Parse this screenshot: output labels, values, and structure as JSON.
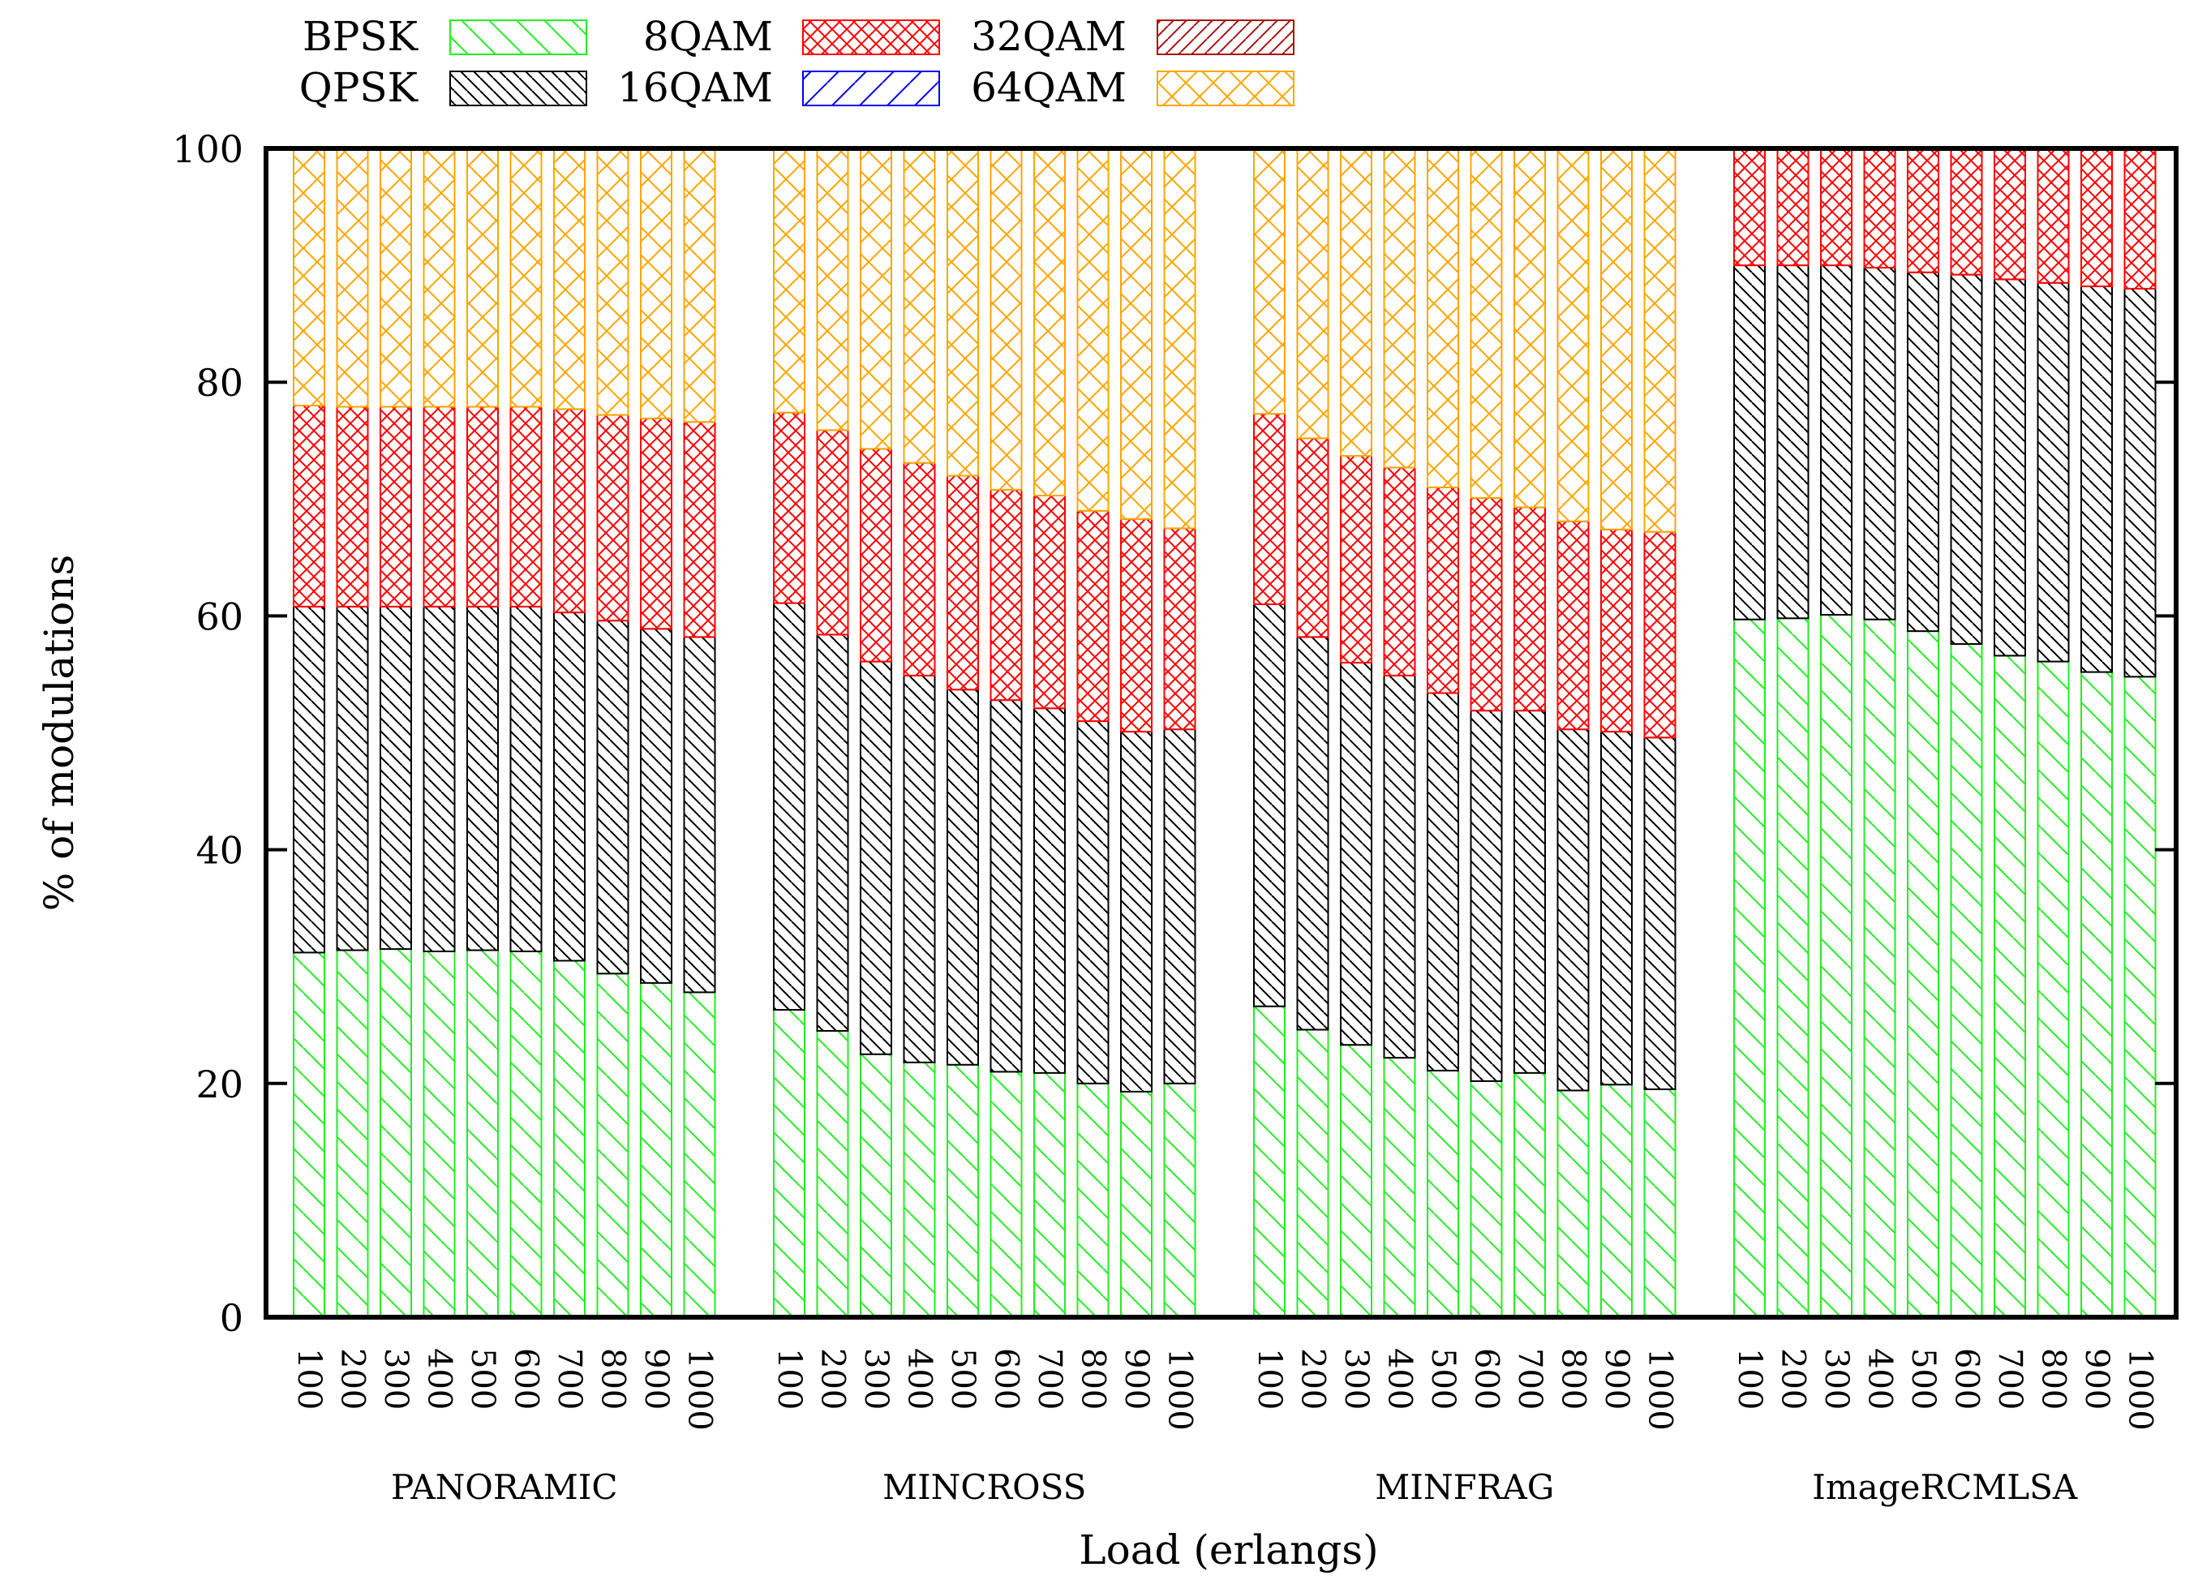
{
  "chart_data": {
    "type": "bar",
    "stacked": true,
    "ylabel": "% of modulations",
    "xlabel": "Load (erlangs)",
    "ylim": [
      0,
      100
    ],
    "yticks": [
      "0",
      "20",
      "40",
      "60",
      "80",
      "100"
    ],
    "loads": [
      "100",
      "200",
      "300",
      "400",
      "500",
      "600",
      "700",
      "800",
      "900",
      "1000"
    ],
    "legend_position": "top-left, outside plot",
    "series": [
      {
        "name": "BPSK",
        "color": "#22ee22",
        "pattern": "diag-back"
      },
      {
        "name": "QPSK",
        "color": "#000000",
        "pattern": "diag-back-dense"
      },
      {
        "name": "8QAM",
        "color": "#ff0000",
        "pattern": "crosshatch-dense"
      },
      {
        "name": "16QAM",
        "color": "#0000ff",
        "pattern": "diag-fwd"
      },
      {
        "name": "32QAM",
        "color": "#aa1111",
        "pattern": "diag-fwd-dense"
      },
      {
        "name": "64QAM",
        "color": "#ffa500",
        "pattern": "crosshatch"
      }
    ],
    "groups": [
      {
        "name": "PANORAMIC",
        "values": {
          "BPSK": [
            31.2,
            31.4,
            31.5,
            31.3,
            31.4,
            31.3,
            30.5,
            29.4,
            28.6,
            27.8
          ],
          "QPSK": [
            29.6,
            29.4,
            29.3,
            29.5,
            29.4,
            29.5,
            29.8,
            30.2,
            30.3,
            30.4
          ],
          "8QAM": [
            17.2,
            17.1,
            17.1,
            17.1,
            17.1,
            17.1,
            17.4,
            17.6,
            18.0,
            18.4
          ],
          "16QAM": [
            0,
            0,
            0,
            0,
            0,
            0,
            0,
            0,
            0,
            0
          ],
          "32QAM": [
            0,
            0,
            0,
            0,
            0,
            0,
            0,
            0,
            0,
            0
          ],
          "64QAM": [
            22.0,
            22.1,
            22.1,
            22.1,
            22.1,
            22.1,
            22.3,
            22.8,
            23.1,
            23.4
          ]
        }
      },
      {
        "name": "MINCROSS",
        "values": {
          "BPSK": [
            26.3,
            24.5,
            22.5,
            21.8,
            21.6,
            21.0,
            20.9,
            20.0,
            19.3,
            20.0
          ],
          "QPSK": [
            34.8,
            33.9,
            33.6,
            33.1,
            32.1,
            31.8,
            31.2,
            31.0,
            30.8,
            30.3
          ],
          "8QAM": [
            16.3,
            17.5,
            18.2,
            18.2,
            18.3,
            18.0,
            18.2,
            18.0,
            18.2,
            17.2
          ],
          "16QAM": [
            0,
            0,
            0,
            0,
            0,
            0,
            0,
            0,
            0,
            0
          ],
          "32QAM": [
            0,
            0,
            0,
            0,
            0,
            0,
            0,
            0,
            0,
            0
          ],
          "64QAM": [
            22.6,
            24.1,
            25.7,
            26.9,
            28.0,
            29.2,
            29.7,
            31.0,
            31.7,
            32.5
          ]
        }
      },
      {
        "name": "MINFRAG",
        "values": {
          "BPSK": [
            26.6,
            24.6,
            23.3,
            22.2,
            21.1,
            20.2,
            20.9,
            19.4,
            19.9,
            19.5
          ],
          "QPSK": [
            34.4,
            33.6,
            32.7,
            32.7,
            32.3,
            31.7,
            31.0,
            30.9,
            30.2,
            30.1
          ],
          "8QAM": [
            16.3,
            17.0,
            17.7,
            17.8,
            17.6,
            18.2,
            17.4,
            17.8,
            17.3,
            17.6
          ],
          "16QAM": [
            0,
            0,
            0,
            0,
            0,
            0,
            0,
            0,
            0,
            0
          ],
          "32QAM": [
            0,
            0,
            0,
            0,
            0,
            0,
            0,
            0,
            0,
            0
          ],
          "64QAM": [
            22.7,
            24.8,
            26.3,
            27.3,
            29.0,
            29.9,
            30.7,
            31.9,
            32.6,
            32.8
          ]
        }
      },
      {
        "name": "ImageRCMLSA",
        "values": {
          "BPSK": [
            59.7,
            59.8,
            60.1,
            59.7,
            58.7,
            57.6,
            56.6,
            56.1,
            55.2,
            54.8
          ],
          "QPSK": [
            30.3,
            30.2,
            29.9,
            30.1,
            30.7,
            31.6,
            32.2,
            32.4,
            33.0,
            33.2
          ],
          "8QAM": [
            10.0,
            10.0,
            10.0,
            10.2,
            10.6,
            10.8,
            11.2,
            11.5,
            11.8,
            12.0
          ],
          "16QAM": [
            0,
            0,
            0,
            0,
            0,
            0,
            0,
            0,
            0,
            0
          ],
          "32QAM": [
            0,
            0,
            0,
            0,
            0,
            0,
            0,
            0,
            0,
            0
          ],
          "64QAM": [
            0,
            0,
            0,
            0,
            0,
            0,
            0,
            0,
            0,
            0
          ]
        }
      }
    ]
  }
}
